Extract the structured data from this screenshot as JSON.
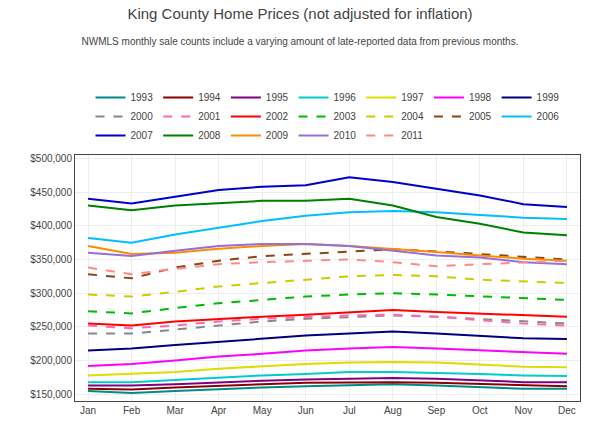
{
  "chart_data": {
    "type": "line",
    "title": "King County Home Prices (not adjusted for inflation)",
    "subtitle": "NWMLS monthly sale counts include a varying amount of late-reported data from previous months.",
    "categories": [
      "Jan",
      "Feb",
      "Mar",
      "Apr",
      "May",
      "Jun",
      "Jul",
      "Aug",
      "Sep",
      "Oct",
      "Nov",
      "Dec"
    ],
    "series": [
      {
        "name": "1993",
        "color": "#008B8B",
        "line_style": "solid",
        "values": [
          155000,
          152000,
          155000,
          158000,
          160000,
          162000,
          163000,
          165000,
          163000,
          160000,
          158000,
          158000
        ]
      },
      {
        "name": "1994",
        "color": "#8B0000",
        "line_style": "solid",
        "values": [
          158000,
          157000,
          160000,
          163000,
          165000,
          167000,
          168000,
          168000,
          167000,
          165000,
          163000,
          162000
        ]
      },
      {
        "name": "1995",
        "color": "#800080",
        "line_style": "solid",
        "values": [
          163000,
          163000,
          165000,
          168000,
          170000,
          172000,
          173000,
          174000,
          173000,
          170000,
          168000,
          168000
        ]
      },
      {
        "name": "1996",
        "color": "#00CCCC",
        "line_style": "solid",
        "values": [
          168000,
          168000,
          171000,
          175000,
          178000,
          180000,
          183000,
          183000,
          182000,
          180000,
          178000,
          177000
        ]
      },
      {
        "name": "1997",
        "color": "#DDDD00",
        "line_style": "solid",
        "values": [
          178000,
          180000,
          183000,
          188000,
          192000,
          195000,
          197000,
          198000,
          197000,
          194000,
          191000,
          190000
        ]
      },
      {
        "name": "1998",
        "color": "#FF00FF",
        "line_style": "solid",
        "values": [
          192000,
          195000,
          200000,
          206000,
          210000,
          215000,
          218000,
          220000,
          218000,
          215000,
          212000,
          210000
        ]
      },
      {
        "name": "1999",
        "color": "#000080",
        "line_style": "solid",
        "values": [
          215000,
          218000,
          223000,
          228000,
          233000,
          237000,
          240000,
          243000,
          240000,
          237000,
          233000,
          232000
        ]
      },
      {
        "name": "2000",
        "color": "#888888",
        "line_style": "dashed",
        "values": [
          240000,
          240000,
          246000,
          252000,
          258000,
          262000,
          265000,
          267000,
          265000,
          262000,
          258000,
          255000
        ]
      },
      {
        "name": "2001",
        "color": "#FF69B4",
        "line_style": "dashed",
        "values": [
          252000,
          248000,
          252000,
          258000,
          262000,
          265000,
          267000,
          268000,
          265000,
          260000,
          255000,
          252000
        ]
      },
      {
        "name": "2002",
        "color": "#FF0000",
        "line_style": "solid",
        "values": [
          255000,
          252000,
          258000,
          262000,
          265000,
          268000,
          272000,
          275000,
          272000,
          270000,
          267000,
          265000
        ]
      },
      {
        "name": "2003",
        "color": "#00BB00",
        "line_style": "dashed",
        "values": [
          273000,
          270000,
          278000,
          285000,
          290000,
          295000,
          298000,
          300000,
          298000,
          295000,
          292000,
          290000
        ]
      },
      {
        "name": "2004",
        "color": "#CCCC00",
        "line_style": "dashed",
        "values": [
          298000,
          295000,
          302000,
          310000,
          315000,
          320000,
          325000,
          327000,
          325000,
          320000,
          317000,
          315000
        ]
      },
      {
        "name": "2005",
        "color": "#8B4513",
        "line_style": "dashed",
        "values": [
          328000,
          322000,
          338000,
          348000,
          355000,
          358000,
          362000,
          365000,
          362000,
          358000,
          353000,
          350000
        ]
      },
      {
        "name": "2006",
        "color": "#00BFFF",
        "line_style": "solid",
        "values": [
          382000,
          375000,
          387000,
          397000,
          407000,
          415000,
          420000,
          422000,
          420000,
          416000,
          412000,
          410000
        ]
      },
      {
        "name": "2007",
        "color": "#0000CC",
        "line_style": "solid",
        "values": [
          440000,
          433000,
          443000,
          453000,
          458000,
          460000,
          472000,
          465000,
          455000,
          445000,
          432000,
          428000
        ]
      },
      {
        "name": "2008",
        "color": "#008000",
        "line_style": "solid",
        "values": [
          430000,
          423000,
          430000,
          433000,
          437000,
          437000,
          440000,
          430000,
          413000,
          403000,
          390000,
          386000
        ]
      },
      {
        "name": "2009",
        "color": "#FF8C00",
        "line_style": "solid",
        "values": [
          370000,
          358000,
          360000,
          366000,
          370000,
          373000,
          370000,
          366000,
          361000,
          356000,
          351000,
          348000
        ]
      },
      {
        "name": "2010",
        "color": "#9370DB",
        "line_style": "solid",
        "values": [
          360000,
          355000,
          363000,
          370000,
          373000,
          373000,
          370000,
          363000,
          356000,
          353000,
          346000,
          343000
        ]
      },
      {
        "name": "2011",
        "color": "#FF8888",
        "line_style": "dashed",
        "values": [
          338000,
          328000,
          336000,
          343000,
          346000,
          348000,
          350000,
          346000,
          340000,
          343000,
          346000,
          348000
        ]
      }
    ],
    "ylim": [
      140000,
      505000
    ],
    "yticks": [
      {
        "value": 150000,
        "label": "$150,000"
      },
      {
        "value": 200000,
        "label": "$200,000"
      },
      {
        "value": 250000,
        "label": "$250,000"
      },
      {
        "value": 300000,
        "label": "$300,000"
      },
      {
        "value": 350000,
        "label": "$350,000"
      },
      {
        "value": 400000,
        "label": "$400,000"
      },
      {
        "value": 450000,
        "label": "$450,000"
      },
      {
        "value": 500000,
        "label": "$500,000"
      }
    ],
    "grid": true,
    "legend": "top"
  }
}
